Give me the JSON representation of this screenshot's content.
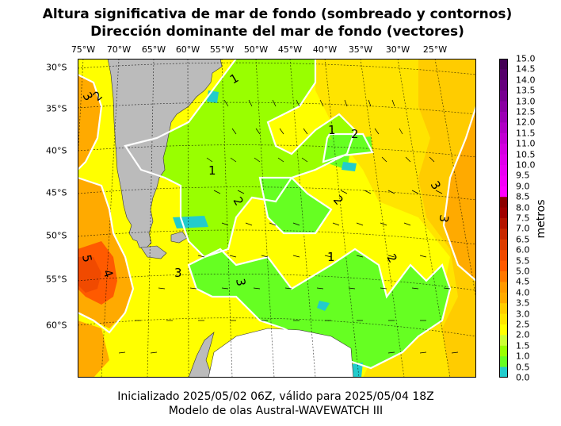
{
  "title": {
    "line1": "Altura significativa de mar de fondo (sombreado y contornos)",
    "line2": "Dirección dominante del mar de fondo (vectores)"
  },
  "lon_labels": [
    "75°W",
    "70°W",
    "65°W",
    "60°W",
    "55°W",
    "50°W",
    "45°W",
    "40°W",
    "35°W",
    "30°W",
    "25°W"
  ],
  "lat_labels": [
    "30°S",
    "35°S",
    "40°S",
    "45°S",
    "50°S",
    "55°S",
    "60°S"
  ],
  "colorbar": {
    "units": "metros",
    "ticks": [
      "15.0",
      "14.5",
      "14.0",
      "13.5",
      "13.0",
      "12.5",
      "12.0",
      "11.5",
      "11.0",
      "10.5",
      "10.0",
      "9.5",
      "9.0",
      "8.5",
      "8.0",
      "7.5",
      "7.0",
      "6.5",
      "6.0",
      "5.5",
      "5.0",
      "4.5",
      "4.0",
      "3.5",
      "3.0",
      "2.5",
      "2.0",
      "1.5",
      "1.0",
      "0.5",
      "0.0"
    ],
    "colors": [
      "#440055",
      "#55006a",
      "#66007d",
      "#770090",
      "#8a00a2",
      "#9c00b4",
      "#b000c4",
      "#c200d2",
      "#d400e0",
      "#e000ea",
      "#ea00f2",
      "#f400f8",
      "#ff00ff",
      "#8b0000",
      "#a00000",
      "#b41400",
      "#c82800",
      "#dc3c00",
      "#f04a00",
      "#ff5a00",
      "#ff7800",
      "#ff9900",
      "#ffaa00",
      "#ffcc00",
      "#ffe400",
      "#ffff00",
      "#ccff33",
      "#99ff00",
      "#66ff22",
      "#22cccc"
    ]
  },
  "contour_labels": [
    "1",
    "1",
    "1",
    "1",
    "2",
    "2",
    "2",
    "2",
    "2",
    "3",
    "3",
    "3",
    "3",
    "3",
    "4",
    "5"
  ],
  "footer": {
    "line1": "Inicializado 2025/05/02 06Z, válido para 2025/05/04 18Z",
    "line2": "Modelo de olas Austral-WAVEWATCH III"
  }
}
